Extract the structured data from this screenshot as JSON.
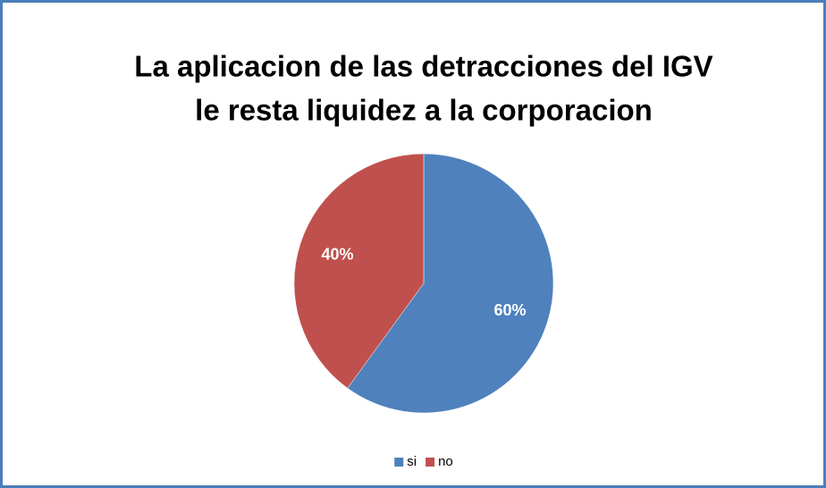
{
  "chart_data": {
    "type": "pie",
    "title": [
      "La aplicacion de las detracciones del IGV",
      "le resta liquidez a la corporacion"
    ],
    "categories": [
      "si",
      "no"
    ],
    "values": [
      60,
      40
    ],
    "value_labels": [
      "60%",
      "40%"
    ],
    "colors": [
      "#4f81bd",
      "#c0504d"
    ],
    "legend": "bottom"
  }
}
